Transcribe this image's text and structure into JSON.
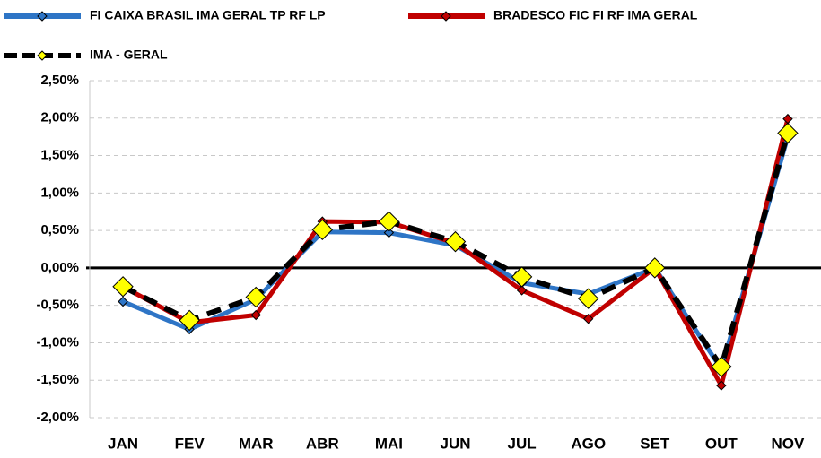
{
  "chart_data": {
    "type": "line",
    "categories": [
      "JAN",
      "FEV",
      "MAR",
      "ABR",
      "MAI",
      "JUN",
      "JUL",
      "AGO",
      "SET",
      "OUT",
      "NOV"
    ],
    "series": [
      {
        "name": "FI CAIXA BRASIL IMA GERAL TP RF LP",
        "color": "#2e75c6",
        "marker_color": "#2e75c6",
        "values": [
          -0.45,
          -0.82,
          -0.42,
          0.48,
          0.47,
          0.3,
          -0.2,
          -0.35,
          0.0,
          -1.35,
          1.75
        ]
      },
      {
        "name": "BRADESCO FIC FI RF IMA GERAL",
        "color": "#c00000",
        "marker_color": "#c00000",
        "values": [
          -0.25,
          -0.73,
          -0.63,
          0.62,
          0.61,
          0.33,
          -0.3,
          -0.68,
          0.0,
          -1.57,
          1.99
        ]
      },
      {
        "name": "IMA - GERAL",
        "color": "#000000",
        "marker_color": "#ffff00",
        "dash": true,
        "values": [
          -0.25,
          -0.7,
          -0.39,
          0.51,
          0.62,
          0.35,
          -0.12,
          -0.41,
          0.0,
          -1.32,
          1.8
        ]
      }
    ],
    "ylim": [
      -2.0,
      2.5
    ],
    "yticks": [
      {
        "value": -2.0,
        "label": "-2,00%"
      },
      {
        "value": -1.5,
        "label": "-1,50%"
      },
      {
        "value": -1.0,
        "label": "-1,00%"
      },
      {
        "value": -0.5,
        "label": "-0,50%"
      },
      {
        "value": 0.0,
        "label": "0,00%"
      },
      {
        "value": 0.5,
        "label": "0,50%"
      },
      {
        "value": 1.0,
        "label": "1,00%"
      },
      {
        "value": 1.5,
        "label": "1,50%"
      },
      {
        "value": 2.0,
        "label": "2,00%"
      },
      {
        "value": 2.5,
        "label": "2,50%"
      }
    ],
    "grid": true
  }
}
